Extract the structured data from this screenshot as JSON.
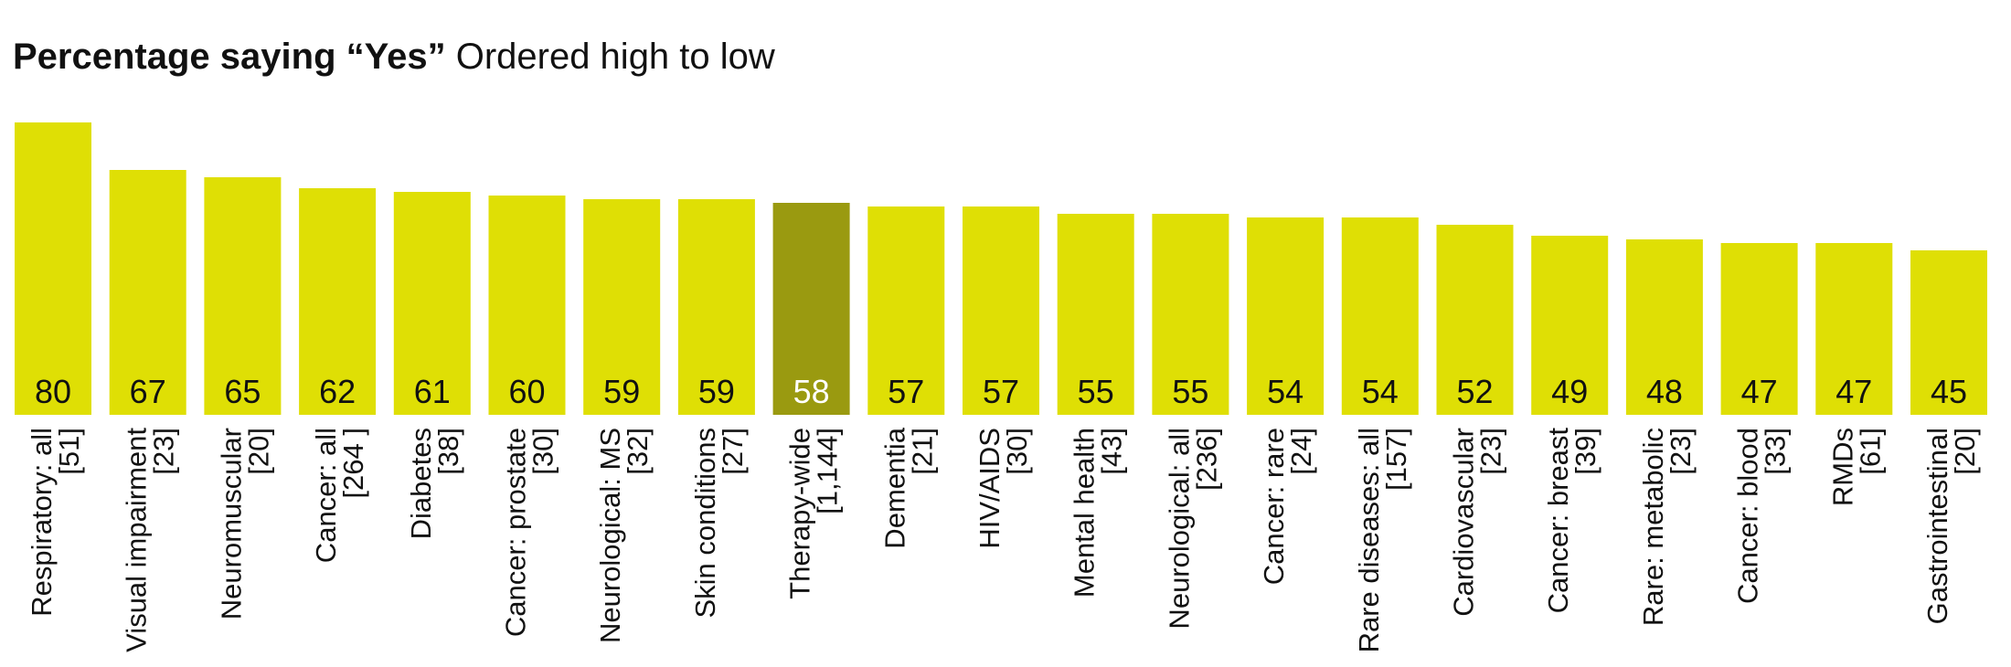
{
  "title": {
    "bold": "Percentage saying “Yes”",
    "sub": "Ordered high to low"
  },
  "colors": {
    "bar": "#dfdf05",
    "highlight_bar": "#9a9a10",
    "value_text": "#111111",
    "highlight_value_text": "#ffffff"
  },
  "chart_data": {
    "type": "bar",
    "title": "Percentage saying “Yes” Ordered high to low",
    "xlabel": "",
    "ylabel": "",
    "ylim": [
      0,
      100
    ],
    "grid": false,
    "highlight_category": "Therapy-wide",
    "categories": [
      {
        "name": "Respiratory: all",
        "n": "[51]",
        "value": 80
      },
      {
        "name": "Visual impairment",
        "n": "[23]",
        "value": 67
      },
      {
        "name": "Neuromuscular",
        "n": "[20]",
        "value": 65
      },
      {
        "name": "Cancer: all",
        "n": "[264 ]",
        "value": 62
      },
      {
        "name": "Diabetes",
        "n": "[38]",
        "value": 61
      },
      {
        "name": "Cancer: prostate",
        "n": "[30]",
        "value": 60
      },
      {
        "name": "Neurological: MS",
        "n": "[32]",
        "value": 59
      },
      {
        "name": "Skin conditions",
        "n": "[27]",
        "value": 59
      },
      {
        "name": "Therapy-wide",
        "n": "[1,144]",
        "value": 58
      },
      {
        "name": "Dementia",
        "n": "[21]",
        "value": 57
      },
      {
        "name": "HIV/AIDS",
        "n": "[30]",
        "value": 57
      },
      {
        "name": "Mental health",
        "n": "[43]",
        "value": 55
      },
      {
        "name": "Neurological: all",
        "n": "[236]",
        "value": 55
      },
      {
        "name": "Cancer: rare",
        "n": "[24]",
        "value": 54
      },
      {
        "name": "Rare diseases: all",
        "n": "[157]",
        "value": 54
      },
      {
        "name": "Cardiovascular",
        "n": "[23]",
        "value": 52
      },
      {
        "name": "Cancer: breast",
        "n": "[39]",
        "value": 49
      },
      {
        "name": "Rare: metabolic",
        "n": "[23]",
        "value": 48
      },
      {
        "name": "Cancer: blood",
        "n": "[33]",
        "value": 47
      },
      {
        "name": "RMDs",
        "n": "[61]",
        "value": 47
      },
      {
        "name": "Gastrointestinal",
        "n": "[20]",
        "value": 45
      }
    ]
  }
}
